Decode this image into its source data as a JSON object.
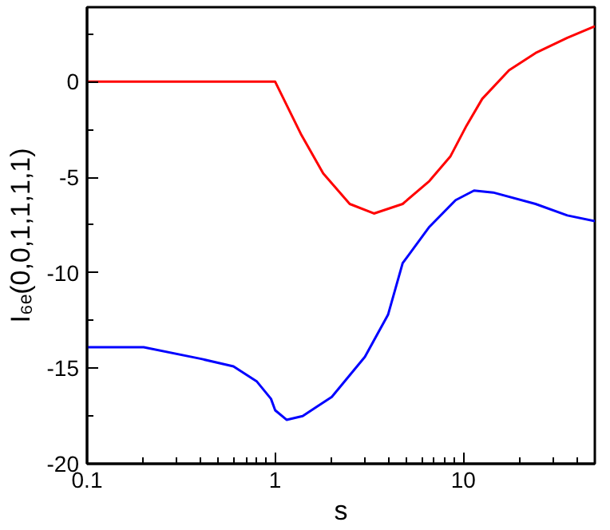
{
  "chart_data": {
    "type": "line",
    "xlabel": "s",
    "ylabel": "I₆ₑ(0,0,1,1,1,1)",
    "log": "x",
    "xlim": [
      0.1,
      50
    ],
    "xticks": [
      0.1,
      1,
      10
    ],
    "ylim": [
      -20,
      3.9
    ],
    "yticks": [
      -20,
      -15,
      -10,
      -5,
      0
    ],
    "marker": "none",
    "line_style": "solid",
    "series": [
      {
        "color": "#ff0000",
        "x": [
          0.1,
          0.5,
          1,
          1.38,
          1.8,
          2.49,
          3.35,
          4.76,
          6.6,
          8.55,
          10.4,
          12.6,
          17.5,
          24.2,
          35.7,
          50
        ],
        "values": [
          0,
          0,
          0,
          -2.8,
          -4.8,
          -6.4,
          -6.9,
          -6.4,
          -5.2,
          -3.9,
          -2.3,
          -0.9,
          0.6,
          1.5,
          2.3,
          2.9
        ]
      },
      {
        "color": "#0000ff",
        "x": [
          0.1,
          0.2,
          0.4,
          0.6,
          0.8,
          0.95,
          1.0,
          1.15,
          1.4,
          2,
          3,
          3.98,
          4.76,
          6.6,
          9.1,
          11.4,
          14.4,
          24.2,
          35.7,
          50
        ],
        "values": [
          -13.9,
          -13.9,
          -14.5,
          -14.9,
          -15.7,
          -16.6,
          -17.2,
          -17.7,
          -17.5,
          -16.5,
          -14.4,
          -12.2,
          -9.5,
          -7.6,
          -6.2,
          -5.7,
          -5.8,
          -6.4,
          -7.0,
          -7.3
        ]
      }
    ]
  }
}
